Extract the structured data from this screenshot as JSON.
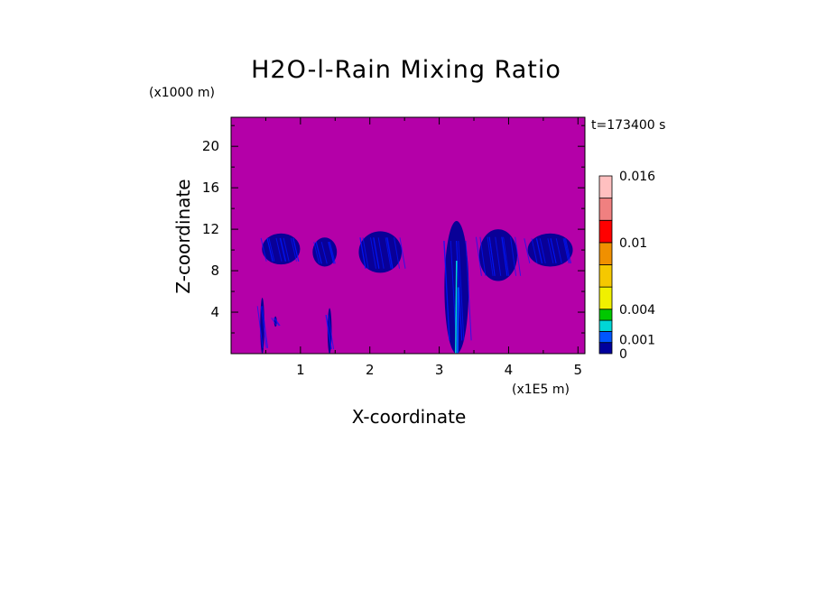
{
  "chart_data": {
    "type": "heatmap",
    "title": "H2O-l-Rain Mixing Ratio",
    "xlabel": "X-coordinate",
    "ylabel": "Z-coordinate",
    "x_unit_label": "(x1E5 m)",
    "y_unit_label": "(x1000 m)",
    "time_label": "t=173400 s",
    "xlim": [
      0,
      5.1
    ],
    "ylim": [
      0,
      22.8
    ],
    "xticks": [
      "1",
      "2",
      "3",
      "4",
      "5"
    ],
    "yticks": [
      "4",
      "8",
      "12",
      "16",
      "20"
    ],
    "background_color": "#b400a8",
    "colorbar": {
      "levels": [
        0,
        0.001,
        0.002,
        0.003,
        0.004,
        0.006,
        0.008,
        0.01,
        0.012,
        0.014,
        0.016
      ],
      "colors": [
        "#00009c",
        "#0055ff",
        "#00d6d6",
        "#00c800",
        "#f0f000",
        "#f5c800",
        "#f09000",
        "#ff0000",
        "#f08080",
        "#ffc0c0"
      ],
      "labels": [
        "0",
        "0.001",
        "0.004",
        "0.01",
        "0.016"
      ]
    },
    "rain_regions": [
      {
        "x_center": 0.72,
        "z_bottom": 8.6,
        "z_top": 11.6,
        "width": 0.55,
        "level": 0.001
      },
      {
        "x_center": 1.35,
        "z_bottom": 8.4,
        "z_top": 11.2,
        "width": 0.35,
        "level": 0.001
      },
      {
        "x_center": 2.15,
        "z_bottom": 7.8,
        "z_top": 11.8,
        "width": 0.62,
        "level": 0.001
      },
      {
        "x_center": 3.25,
        "z_bottom": 0,
        "z_top": 12.8,
        "width": 0.35,
        "level": 0.002
      },
      {
        "x_center": 3.85,
        "z_bottom": 7.0,
        "z_top": 12.0,
        "width": 0.55,
        "level": 0.001
      },
      {
        "x_center": 4.6,
        "z_bottom": 8.4,
        "z_top": 11.6,
        "width": 0.65,
        "level": 0.001
      },
      {
        "x_center": 0.45,
        "z_bottom": 0,
        "z_top": 5.4,
        "width": 0.06,
        "level": 0.001
      },
      {
        "x_center": 0.64,
        "z_bottom": 2.6,
        "z_top": 3.6,
        "width": 0.04,
        "level": 0.001
      },
      {
        "x_center": 1.42,
        "z_bottom": 0,
        "z_top": 4.4,
        "width": 0.06,
        "level": 0.001
      }
    ]
  }
}
